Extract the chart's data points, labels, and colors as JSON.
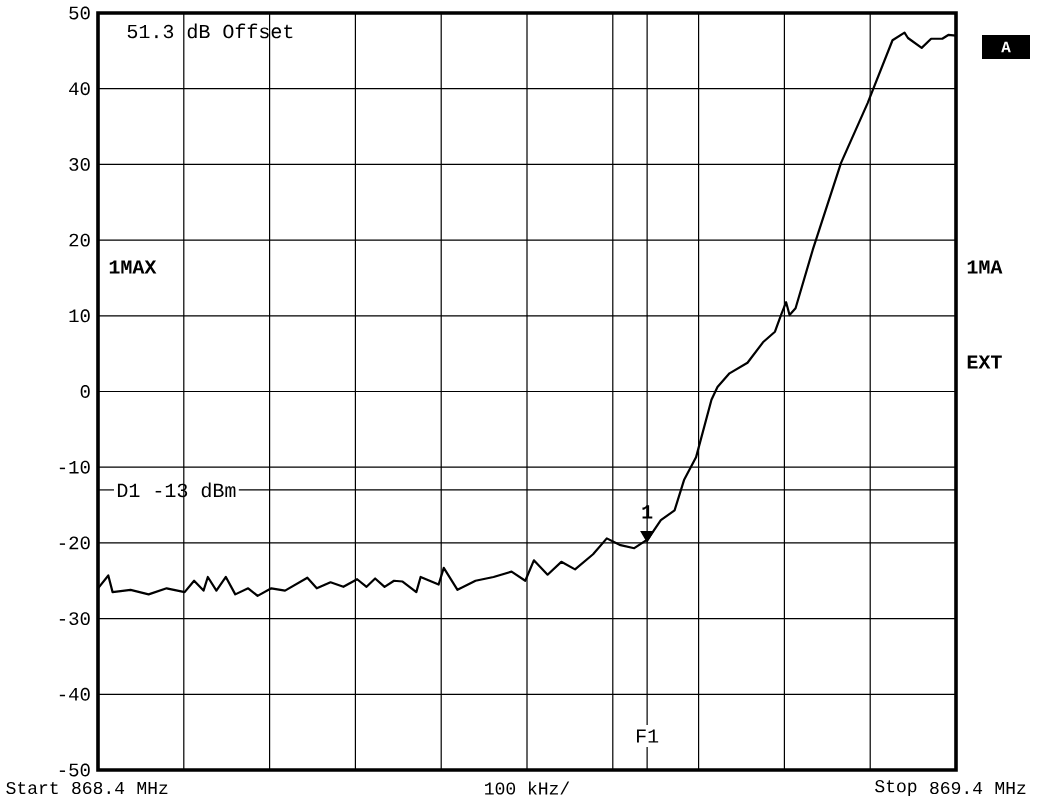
{
  "chart_data": {
    "type": "line",
    "xlim": [
      868.4,
      869.4
    ],
    "xticks": [
      868.4,
      {
        "value": 868.5,
        "label": null
      },
      {
        "value": 868.6,
        "label": null
      },
      {
        "value": 868.7,
        "label": null
      },
      {
        "value": 868.8,
        "label": null
      },
      {
        "value": 868.9,
        "label": null
      },
      {
        "value": 869.0,
        "label": null
      },
      {
        "value": 869.1,
        "label": null
      },
      {
        "value": 869.2,
        "label": null
      },
      {
        "value": 869.3,
        "label": null
      },
      869.4
    ],
    "ylim": [
      -50,
      50
    ],
    "yticks": [
      -50,
      -40,
      -30,
      -20,
      -10,
      0,
      10,
      20,
      30,
      40,
      50
    ],
    "grid": true,
    "series": [
      {
        "color": "#000000",
        "x": [
          868.4,
          868.412,
          868.417,
          868.438,
          868.459,
          868.48,
          868.501,
          868.512,
          868.523,
          868.528,
          868.538,
          868.549,
          868.56,
          868.575,
          868.586,
          868.602,
          868.618,
          868.644,
          868.655,
          868.671,
          868.686,
          868.702,
          868.713,
          868.723,
          868.734,
          868.745,
          868.755,
          868.771,
          868.776,
          868.797,
          868.803,
          868.819,
          868.84,
          868.861,
          868.882,
          868.898,
          868.908,
          868.924,
          868.94,
          868.956,
          868.977,
          868.993,
          869.009,
          869.025,
          869.041,
          869.056,
          869.072,
          869.083,
          869.097,
          869.115,
          869.122,
          869.136,
          869.157,
          869.175,
          869.189,
          869.196,
          869.202,
          869.206,
          869.213,
          869.233,
          869.266,
          869.297,
          869.326,
          869.34,
          869.344,
          869.36,
          869.371,
          869.384,
          869.391,
          869.4
        ],
        "values": [
          -26,
          -24.3,
          -26.5,
          -26.2,
          -26.8,
          -26,
          -26.5,
          -25,
          -26.3,
          -24.5,
          -26.3,
          -24.5,
          -26.8,
          -26,
          -27,
          -26,
          -26.3,
          -24.6,
          -26,
          -25.2,
          -25.8,
          -24.8,
          -25.8,
          -24.7,
          -25.8,
          -25,
          -25.1,
          -26.5,
          -24.5,
          -25.5,
          -23.3,
          -26.2,
          -25,
          -24.5,
          -23.8,
          -25,
          -22.3,
          -24.2,
          -22.5,
          -23.5,
          -21.5,
          -19.4,
          -20.3,
          -20.7,
          -19.5,
          -17,
          -15.7,
          -11.7,
          -8.7,
          -1.1,
          0.6,
          2.4,
          3.8,
          6.5,
          7.9,
          10.1,
          11.8,
          10.1,
          11,
          18.7,
          30.2,
          38.1,
          46.4,
          47.4,
          46.7,
          45.4,
          46.6,
          46.6,
          47.1,
          47
        ]
      }
    ],
    "ref_lines": [
      {
        "axis": "y",
        "value": -13,
        "label": "D1 -13 dBm"
      },
      {
        "axis": "x",
        "value": 869.04,
        "label": "F1"
      }
    ],
    "xlabel": "100 kHz/",
    "annotations": [
      "51.3 dB Offset",
      "1MAX",
      "1MA",
      "A",
      "EXT",
      "Start",
      "MHz",
      "Stop",
      "MHz",
      {
        "text": "1",
        "x": 869.04,
        "y": -20
      }
    ]
  }
}
